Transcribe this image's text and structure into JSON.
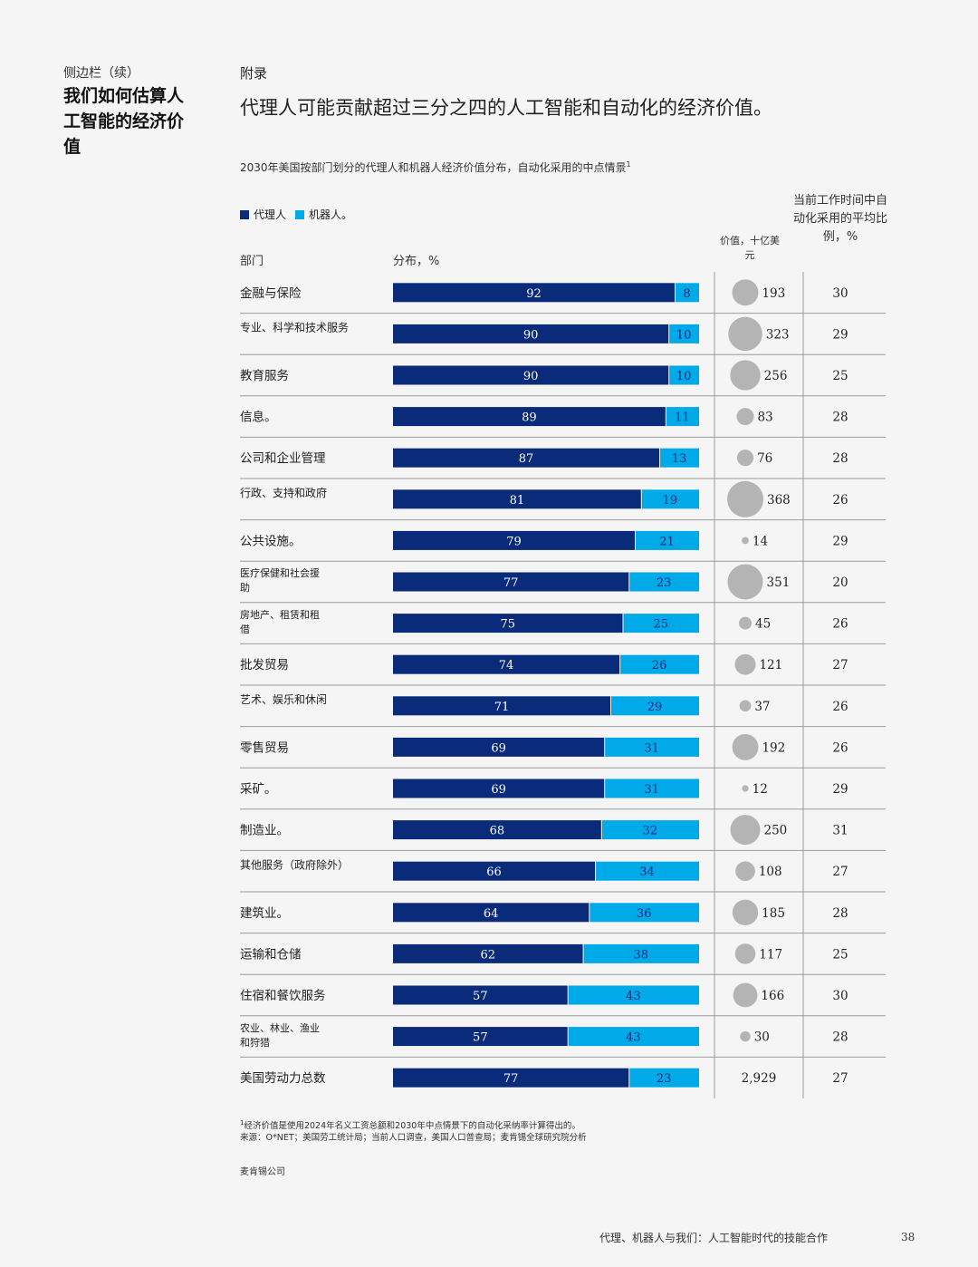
{
  "sidebar": {
    "kicker": "侧边栏（续）",
    "title": "我们如何估算人工智能的经济价值"
  },
  "header": {
    "appendix": "附录",
    "headline": "代理人可能贡献超过三分之四的人工智能和自动化的经济价值。"
  },
  "colors": {
    "agent": "#0a2a7a",
    "robot": "#00a9e8",
    "bubble": "#b4b4b4",
    "rule": "#9a9a9a"
  },
  "chart_data": {
    "type": "bar",
    "subtitle": "2030年美国按部门划分的代理人和机器人经济价值分布，自动化采用的中点情景",
    "subtitle_sup": "1",
    "legend": [
      "代理人",
      "机器人。"
    ],
    "columns": {
      "sector": "部门",
      "distribution": "分布，%",
      "value": "价值，十亿美元",
      "share": "当前工作时间中自动化采用的平均比例，%"
    },
    "xlim": [
      0,
      100
    ],
    "rows": [
      {
        "sector": "金融与保险",
        "agent": 92,
        "robot": 8,
        "value": 193,
        "value_label": "193",
        "share": 30
      },
      {
        "sector": "专业、科学和技术服务",
        "agent": 90,
        "robot": 10,
        "value": 323,
        "value_label": "323",
        "share": 29
      },
      {
        "sector": "教育服务",
        "agent": 90,
        "robot": 10,
        "value": 256,
        "value_label": "256",
        "share": 25
      },
      {
        "sector": "信息。",
        "agent": 89,
        "robot": 11,
        "value": 83,
        "value_label": "83",
        "share": 28
      },
      {
        "sector": "公司和企业管理",
        "agent": 87,
        "robot": 13,
        "value": 76,
        "value_label": "76",
        "share": 28
      },
      {
        "sector": "行政、支持和政府",
        "agent": 81,
        "robot": 19,
        "value": 368,
        "value_label": "368",
        "share": 26
      },
      {
        "sector": "公共设施。",
        "agent": 79,
        "robot": 21,
        "value": 14,
        "value_label": "14",
        "share": 29
      },
      {
        "sector": "医疗保健和社会援助",
        "agent": 77,
        "robot": 23,
        "value": 351,
        "value_label": "351",
        "share": 20
      },
      {
        "sector": "房地产、租赁和租借",
        "agent": 75,
        "robot": 25,
        "value": 45,
        "value_label": "45",
        "share": 26
      },
      {
        "sector": "批发贸易",
        "agent": 74,
        "robot": 26,
        "value": 121,
        "value_label": "121",
        "share": 27
      },
      {
        "sector": "艺术、娱乐和休闲",
        "agent": 71,
        "robot": 29,
        "value": 37,
        "value_label": "37",
        "share": 26
      },
      {
        "sector": "零售贸易",
        "agent": 69,
        "robot": 31,
        "value": 192,
        "value_label": "192",
        "share": 26
      },
      {
        "sector": "采矿。",
        "agent": 69,
        "robot": 31,
        "value": 12,
        "value_label": "12",
        "share": 29
      },
      {
        "sector": "制造业。",
        "agent": 68,
        "robot": 32,
        "value": 250,
        "value_label": "250",
        "share": 31
      },
      {
        "sector": "其他服务（政府除外）",
        "agent": 66,
        "robot": 34,
        "value": 108,
        "value_label": "108",
        "share": 27
      },
      {
        "sector": "建筑业。",
        "agent": 64,
        "robot": 36,
        "value": 185,
        "value_label": "185",
        "share": 28
      },
      {
        "sector": "运输和仓储",
        "agent": 62,
        "robot": 38,
        "value": 117,
        "value_label": "117",
        "share": 25
      },
      {
        "sector": "住宿和餐饮服务",
        "agent": 57,
        "robot": 43,
        "value": 166,
        "value_label": "166",
        "share": 30
      },
      {
        "sector": "农业、林业、渔业和狩猎",
        "agent": 57,
        "robot": 43,
        "value": 30,
        "value_label": "30",
        "share": 28
      },
      {
        "sector": "美国劳动力总数",
        "agent": 77,
        "robot": 23,
        "value": 2929,
        "value_label": "2,929",
        "share": 27,
        "total": true
      }
    ]
  },
  "footnote": {
    "sup": "1",
    "line1": "经济价值是使用2024年名义工资总额和2030年中点情景下的自动化采纳率计算得出的。",
    "line2": "来源：O*NET；美国劳工统计局；当前人口调查，美国人口普查局；麦肯锡全球研究院分析"
  },
  "footer": {
    "company": "麦肯锡公司",
    "title": "代理、机器人与我们：人工智能时代的技能合作",
    "page": "38"
  }
}
